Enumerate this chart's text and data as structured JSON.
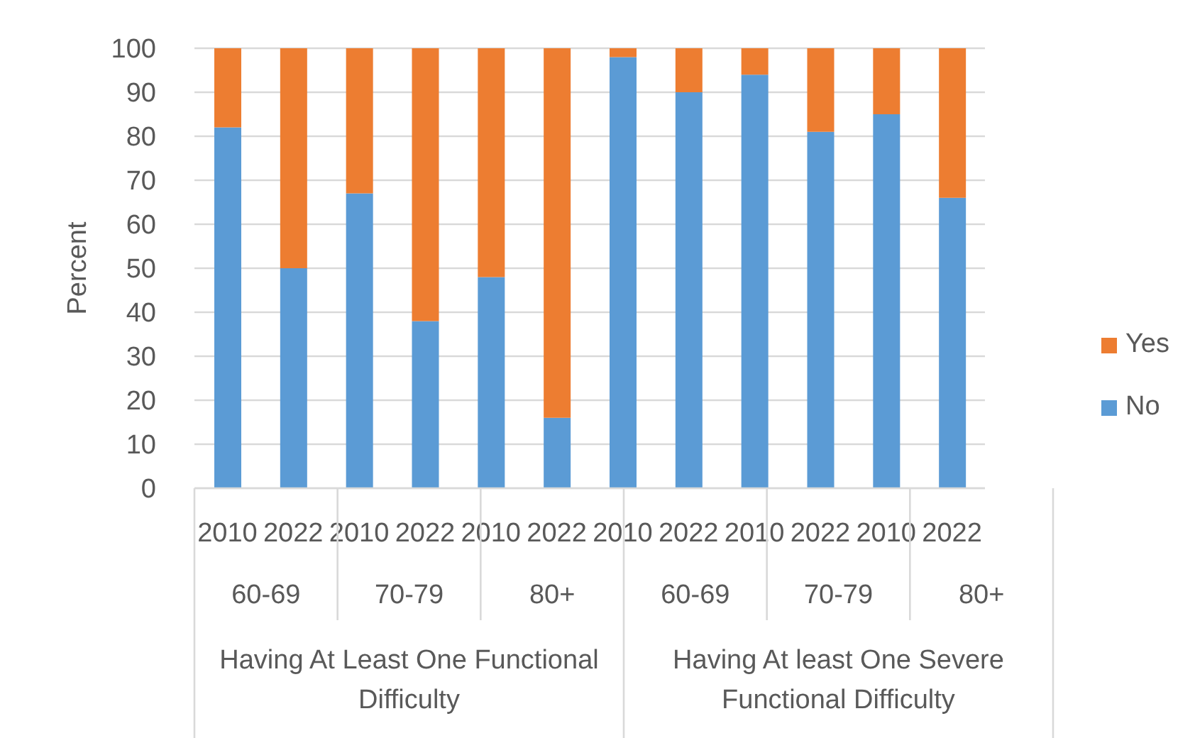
{
  "chart_data": {
    "type": "bar",
    "stacked": true,
    "ylabel": "Percent",
    "categories": [
      "2010",
      "2022",
      "2010",
      "2022",
      "2010",
      "2022",
      "2010",
      "2022",
      "2010",
      "2022",
      "2010",
      "2022"
    ],
    "series": [
      {
        "name": "No",
        "color": "#5b9bd5",
        "values": [
          82,
          50,
          67,
          38,
          48,
          16,
          98,
          90,
          94,
          81,
          85,
          66
        ]
      },
      {
        "name": "Yes",
        "color": "#ed7d31",
        "values": [
          18,
          50,
          33,
          62,
          52,
          84,
          2,
          10,
          6,
          19,
          15,
          34
        ]
      }
    ],
    "ylim": [
      0,
      100
    ],
    "yticks": [
      0,
      10,
      20,
      30,
      40,
      50,
      60,
      70,
      80,
      90,
      100
    ],
    "grid": "y",
    "legend": "right",
    "annotations": [
      "60-69",
      "70-79",
      "80+",
      "60-69",
      "70-79",
      "80+",
      "Having At Least One Functional Difficulty",
      "Having At least One Severe Functional Difficulty"
    ]
  }
}
